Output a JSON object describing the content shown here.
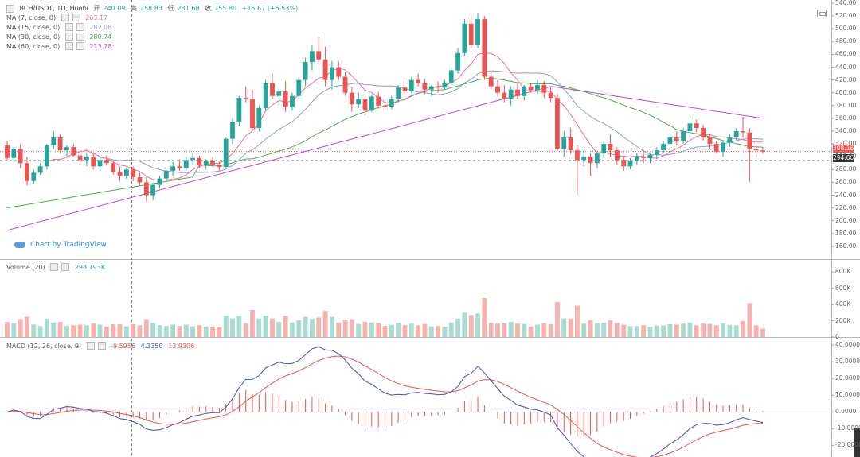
{
  "header": {
    "symbol": "BCH/USDT, 1D, Huobi",
    "open_label": "开",
    "open": "240.09",
    "high_label": "高",
    "high": "258.83",
    "low_label": "低",
    "low": "231.68",
    "close_label": "收",
    "close": "255.80",
    "change": "+15.67 (+6.53%)"
  },
  "indicators": [
    {
      "label": "MA (7, close, 0)",
      "value": "263.17",
      "color": "#f46d9a"
    },
    {
      "label": "MA (15, close, 0)",
      "value": "282.08",
      "color": "#8c9cd8"
    },
    {
      "label": "MA (30, close, 0)",
      "value": "280.74",
      "color": "#4caf50"
    },
    {
      "label": "MA (60, close, 0)",
      "value": "213.78",
      "color": "#cc44cc"
    }
  ],
  "volume_legend": {
    "label": "Volume (20)",
    "value": "298.193K"
  },
  "macd_legend": {
    "label": "MACD (12, 26, close, 9)",
    "v1": "-9.5956",
    "v2": "4.3350",
    "v3": "13.9306"
  },
  "branding": {
    "text": "Chart by TradingView"
  },
  "price_tags": [
    {
      "value": "308.16",
      "color": "#ef5350"
    },
    {
      "value": "294.00",
      "color": "#333333"
    }
  ],
  "colors": {
    "up": "#26a69a",
    "down": "#ef5350",
    "ma7": "#f46d9a",
    "ma15": "#8c9cd8",
    "ma30": "#4caf50",
    "ma60": "#cc44cc",
    "macd": "#3f51b5",
    "signal": "#ef5350"
  },
  "chart_data": [
    {
      "type": "candlestick",
      "title": "BCH/USDT, 1D, Huobi",
      "ylim": [
        140,
        540
      ],
      "yticks": [
        140,
        160,
        180,
        200,
        220,
        240,
        260,
        280,
        300,
        320,
        340,
        360,
        380,
        400,
        420,
        440,
        460,
        480,
        500,
        520,
        540
      ],
      "candles": [
        [
          318,
          325,
          295,
          298
        ],
        [
          298,
          315,
          290,
          312
        ],
        [
          312,
          320,
          282,
          290
        ],
        [
          290,
          300,
          255,
          262
        ],
        [
          262,
          280,
          258,
          275
        ],
        [
          275,
          290,
          272,
          285
        ],
        [
          285,
          320,
          280,
          318
        ],
        [
          318,
          340,
          312,
          330
        ],
        [
          330,
          335,
          305,
          310
        ],
        [
          310,
          318,
          300,
          315
        ],
        [
          315,
          320,
          300,
          302
        ],
        [
          302,
          310,
          288,
          295
        ],
        [
          295,
          305,
          285,
          300
        ],
        [
          300,
          305,
          280,
          285
        ],
        [
          285,
          300,
          278,
          295
        ],
        [
          295,
          302,
          286,
          290
        ],
        [
          290,
          295,
          272,
          276
        ],
        [
          276,
          285,
          262,
          270
        ],
        [
          270,
          282,
          265,
          280
        ],
        [
          280,
          285,
          262,
          268
        ],
        [
          268,
          275,
          255,
          260
        ],
        [
          260,
          268,
          230,
          240
        ],
        [
          240,
          259,
          232,
          256
        ],
        [
          256,
          270,
          250,
          266
        ],
        [
          266,
          280,
          262,
          278
        ],
        [
          278,
          292,
          270,
          285
        ],
        [
          285,
          296,
          278,
          282
        ],
        [
          282,
          300,
          278,
          295
        ],
        [
          295,
          305,
          288,
          298
        ],
        [
          298,
          302,
          282,
          287
        ],
        [
          287,
          296,
          280,
          293
        ],
        [
          293,
          300,
          284,
          288
        ],
        [
          288,
          292,
          278,
          284
        ],
        [
          284,
          330,
          282,
          328
        ],
        [
          328,
          360,
          320,
          355
        ],
        [
          355,
          395,
          348,
          392
        ],
        [
          392,
          410,
          385,
          390
        ],
        [
          390,
          405,
          340,
          345
        ],
        [
          345,
          380,
          340,
          376
        ],
        [
          376,
          420,
          372,
          415
        ],
        [
          415,
          430,
          390,
          395
        ],
        [
          395,
          410,
          380,
          402
        ],
        [
          402,
          418,
          370,
          378
        ],
        [
          378,
          400,
          372,
          395
        ],
        [
          395,
          425,
          390,
          420
        ],
        [
          420,
          455,
          410,
          448
        ],
        [
          448,
          475,
          435,
          465
        ],
        [
          465,
          488,
          445,
          452
        ],
        [
          452,
          472,
          410,
          420
        ],
        [
          420,
          450,
          405,
          440
        ],
        [
          440,
          448,
          420,
          425
        ],
        [
          425,
          432,
          395,
          400
        ],
        [
          400,
          408,
          370,
          382
        ],
        [
          382,
          400,
          376,
          390
        ],
        [
          390,
          395,
          365,
          372
        ],
        [
          372,
          398,
          370,
          394
        ],
        [
          394,
          402,
          375,
          380
        ],
        [
          380,
          390,
          372,
          378
        ],
        [
          378,
          395,
          374,
          390
        ],
        [
          390,
          412,
          385,
          408
        ],
        [
          408,
          418,
          398,
          402
        ],
        [
          402,
          425,
          400,
          420
        ],
        [
          420,
          430,
          410,
          415
        ],
        [
          415,
          422,
          398,
          405
        ],
        [
          405,
          412,
          395,
          410
        ],
        [
          410,
          418,
          400,
          408
        ],
        [
          408,
          420,
          404,
          416
        ],
        [
          416,
          440,
          412,
          435
        ],
        [
          435,
          470,
          430,
          462
        ],
        [
          462,
          515,
          458,
          508
        ],
        [
          508,
          520,
          470,
          475
        ],
        [
          475,
          525,
          470,
          515
        ],
        [
          515,
          520,
          420,
          425
        ],
        [
          425,
          432,
          405,
          410
        ],
        [
          410,
          420,
          395,
          400
        ],
        [
          400,
          412,
          385,
          390
        ],
        [
          390,
          410,
          380,
          405
        ],
        [
          405,
          415,
          390,
          395
        ],
        [
          395,
          412,
          388,
          410
        ],
        [
          410,
          416,
          400,
          404
        ],
        [
          404,
          420,
          398,
          412
        ],
        [
          412,
          418,
          392,
          400
        ],
        [
          400,
          408,
          385,
          392
        ],
        [
          392,
          398,
          310,
          312
        ],
        [
          312,
          340,
          300,
          330
        ],
        [
          330,
          345,
          305,
          310
        ],
        [
          310,
          318,
          240,
          295
        ],
        [
          295,
          310,
          285,
          300
        ],
        [
          300,
          305,
          270,
          290
        ],
        [
          290,
          308,
          282,
          305
        ],
        [
          305,
          325,
          298,
          320
        ],
        [
          320,
          335,
          300,
          310
        ],
        [
          310,
          315,
          288,
          295
        ],
        [
          295,
          300,
          278,
          285
        ],
        [
          285,
          298,
          280,
          294
        ],
        [
          294,
          306,
          288,
          300
        ],
        [
          300,
          310,
          290,
          298
        ],
        [
          298,
          305,
          290,
          303
        ],
        [
          303,
          315,
          296,
          310
        ],
        [
          310,
          325,
          305,
          320
        ],
        [
          320,
          335,
          312,
          330
        ],
        [
          330,
          340,
          318,
          325
        ],
        [
          325,
          345,
          320,
          340
        ],
        [
          340,
          358,
          330,
          352
        ],
        [
          352,
          358,
          338,
          345
        ],
        [
          345,
          350,
          325,
          330
        ],
        [
          330,
          336,
          312,
          320
        ],
        [
          320,
          325,
          305,
          308
        ],
        [
          308,
          325,
          300,
          322
        ],
        [
          322,
          336,
          315,
          330
        ],
        [
          330,
          345,
          325,
          340
        ],
        [
          340,
          362,
          330,
          338
        ],
        [
          338,
          345,
          260,
          312
        ],
        [
          312,
          320,
          300,
          310
        ],
        [
          310,
          315,
          305,
          308
        ]
      ]
    },
    {
      "type": "bar",
      "title": "Volume (20)",
      "ylim": [
        0,
        900
      ],
      "yticks_labels": [
        "0",
        "200K",
        "400K",
        "600K",
        "800K"
      ],
      "yticks": [
        0,
        200,
        400,
        600,
        800
      ]
    },
    {
      "type": "line",
      "title": "MACD (12, 26, close, 9)",
      "ylim": [
        -27,
        42
      ],
      "yticks": [
        -20,
        -10,
        0,
        10,
        20,
        30,
        40
      ],
      "yticks_labels": [
        "-20.0000",
        "-10.0000",
        "0.0000",
        "10.0000",
        "20.0000",
        "30.0000",
        "40.0000"
      ]
    }
  ]
}
